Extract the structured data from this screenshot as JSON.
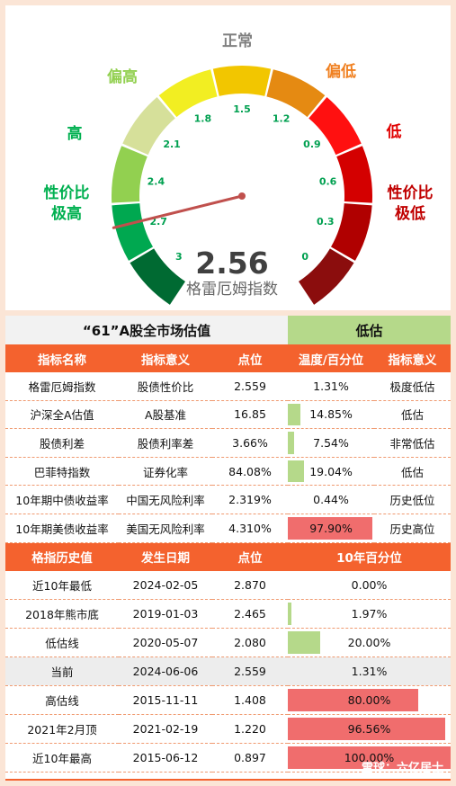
{
  "gauge": {
    "value": "2.56",
    "index_name": "格雷厄姆指数",
    "ticks": [
      "3",
      "2.7",
      "2.4",
      "2.1",
      "1.8",
      "1.5",
      "1.2",
      "0.9",
      "0.6",
      "0.3",
      "0"
    ],
    "zones": [
      {
        "label": "性价比\n极高",
        "color": "#00b050"
      },
      {
        "label": "高",
        "color": "#00b050"
      },
      {
        "label": "偏高",
        "color": "#92d050"
      },
      {
        "label": "正常",
        "color": "#808080"
      },
      {
        "label": "偏低",
        "color": "#f08020"
      },
      {
        "label": "低",
        "color": "#e00000"
      },
      {
        "label": "性价比\n极低",
        "color": "#c00000"
      }
    ],
    "segment_colors": [
      "#006a32",
      "#00a850",
      "#92d050",
      "#d6e09a",
      "#f2ee22",
      "#f2c600",
      "#e58a12",
      "#ff1010",
      "#d40000",
      "#b00000",
      "#8b0d0d"
    ],
    "needle_color": "#c0504d"
  },
  "chart_data": {
    "type": "table",
    "market_table": {
      "title": "“61”A股全市场估值",
      "status": "低估",
      "headers": [
        "指标名称",
        "指标意义",
        "点位",
        "温度/百分位",
        "指标意义"
      ],
      "rows": [
        {
          "name": "格雷厄姆指数",
          "meaning": "股债性价比",
          "value": "2.559",
          "pct_text": "1.31%",
          "pct": 1.31,
          "bar": "none",
          "level": "极度低估"
        },
        {
          "name": "沪深全A估值",
          "meaning": "A股基准",
          "value": "16.85",
          "pct_text": "14.85%",
          "pct": 14.85,
          "bar": "green",
          "level": "低估"
        },
        {
          "name": "股债利差",
          "meaning": "股债利率差",
          "value": "3.66%",
          "pct_text": "7.54%",
          "pct": 7.54,
          "bar": "green",
          "level": "非常低估"
        },
        {
          "name": "巴菲特指数",
          "meaning": "证券化率",
          "value": "84.08%",
          "pct_text": "19.04%",
          "pct": 19.04,
          "bar": "green",
          "level": "低估"
        },
        {
          "name": "10年期中债收益率",
          "meaning": "中国无风险利率",
          "value": "2.319%",
          "pct_text": "0.44%",
          "pct": 0.44,
          "bar": "none",
          "level": "历史低位"
        },
        {
          "name": "10年期美债收益率",
          "meaning": "美国无风险利率",
          "value": "4.310%",
          "pct_text": "97.90%",
          "pct": 97.9,
          "bar": "red",
          "level": "历史高位"
        }
      ]
    },
    "history_table": {
      "headers": [
        "格指历史值",
        "发生日期",
        "点位",
        "10年百分位"
      ],
      "rows": [
        {
          "name": "近10年最低",
          "date": "2024-02-05",
          "value": "2.870",
          "pct_text": "0.00%",
          "pct": 0.0,
          "bar": "none"
        },
        {
          "name": "2018年熊市底",
          "date": "2019-01-03",
          "value": "2.465",
          "pct_text": "1.97%",
          "pct": 1.97,
          "bar": "green"
        },
        {
          "name": "低估线",
          "date": "2020-05-07",
          "value": "2.080",
          "pct_text": "20.00%",
          "pct": 20.0,
          "bar": "green"
        },
        {
          "name": "当前",
          "date": "2024-06-06",
          "value": "2.559",
          "pct_text": "1.31%",
          "pct": 1.31,
          "bar": "none",
          "highlight": true
        },
        {
          "name": "高估线",
          "date": "2015-11-11",
          "value": "1.408",
          "pct_text": "80.00%",
          "pct": 80.0,
          "bar": "red"
        },
        {
          "name": "2021年2月顶",
          "date": "2021-02-19",
          "value": "1.220",
          "pct_text": "96.56%",
          "pct": 96.56,
          "bar": "red"
        },
        {
          "name": "近10年最高",
          "date": "2015-06-12",
          "value": "0.897",
          "pct_text": "100.00%",
          "pct": 100.0,
          "bar": "red"
        }
      ]
    }
  },
  "watermark": "雪球：六亿居士"
}
